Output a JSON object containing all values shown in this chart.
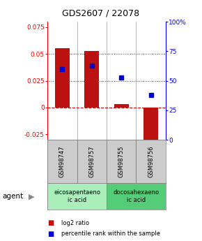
{
  "title": "GDS2607 / 22078",
  "samples": [
    "GSM98747",
    "GSM98757",
    "GSM98755",
    "GSM98756"
  ],
  "log2_ratio": [
    0.055,
    0.053,
    0.003,
    -0.03
  ],
  "percentile_rank": [
    0.6,
    0.63,
    0.53,
    0.38
  ],
  "ylim_left": [
    -0.03,
    0.08
  ],
  "ylim_right": [
    0.0,
    1.0
  ],
  "yticks_left": [
    -0.025,
    0.0,
    0.025,
    0.05,
    0.075
  ],
  "ytick_labels_left": [
    "-0.025",
    "0",
    "0.025",
    "0.05",
    "0.075"
  ],
  "yticks_right": [
    0.0,
    0.25,
    0.5,
    0.75,
    1.0
  ],
  "ytick_labels_right": [
    "0",
    "25",
    "50",
    "75",
    "100%"
  ],
  "hlines_dotted": [
    0.025,
    0.05
  ],
  "hline_zero_color": "#CC0000",
  "bar_color": "#BB1111",
  "dot_color": "#0000CC",
  "bar_width": 0.5,
  "agent_groups": [
    {
      "xmin": -0.5,
      "xmax": 1.5,
      "label": "eicosapentaeno\nic acid",
      "color": "#AAEEBB"
    },
    {
      "xmin": 1.5,
      "xmax": 3.5,
      "label": "docosahexaeno\nic acid",
      "color": "#55CC77"
    }
  ],
  "legend_red": "log2 ratio",
  "legend_blue": "percentile rank within the sample",
  "agent_label": "agent"
}
